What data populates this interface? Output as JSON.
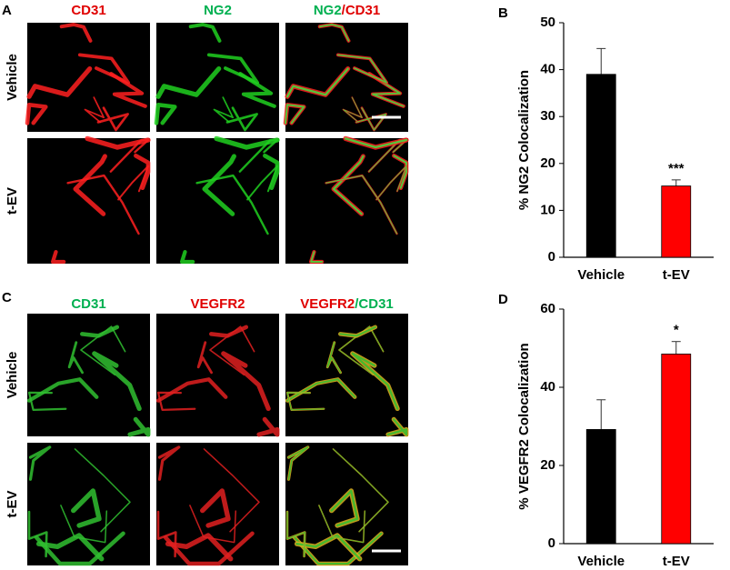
{
  "image_panels": [
    {
      "label": "A",
      "columns": [
        [
          "CD31"
        ],
        [
          "NG2"
        ],
        [
          "NG2",
          "/CD31"
        ]
      ],
      "rows": [
        "Vehicle",
        "t-EV"
      ]
    },
    {
      "label": "C",
      "columns": [
        [
          "CD31"
        ],
        [
          "VEGFR2"
        ],
        [
          "VEGFR2",
          "/CD31"
        ]
      ],
      "rows": [
        "Vehicle",
        "t-EV"
      ]
    }
  ],
  "chart_data": [
    {
      "type": "bar",
      "panel_label": "B",
      "ylabel": "% NG2 Colocalization",
      "categories": [
        "Vehicle",
        "t-EV"
      ],
      "values": [
        39,
        15.2
      ],
      "errors": [
        5.5,
        1.3
      ],
      "colors": [
        "#000000",
        "#ff0000"
      ],
      "annotations": [
        null,
        "***"
      ],
      "ylim": [
        0,
        50
      ],
      "yticks": [
        0,
        10,
        20,
        30,
        40,
        50
      ]
    },
    {
      "type": "bar",
      "panel_label": "D",
      "ylabel": "% VEGFR2 Colocalization",
      "categories": [
        "Vehicle",
        "t-EV"
      ],
      "values": [
        29.2,
        48.5
      ],
      "errors": [
        7.6,
        3.2
      ],
      "colors": [
        "#000000",
        "#ff0000"
      ],
      "annotations": [
        null,
        "*"
      ],
      "ylim": [
        0,
        60
      ],
      "yticks": [
        0,
        20,
        40,
        60
      ]
    }
  ]
}
